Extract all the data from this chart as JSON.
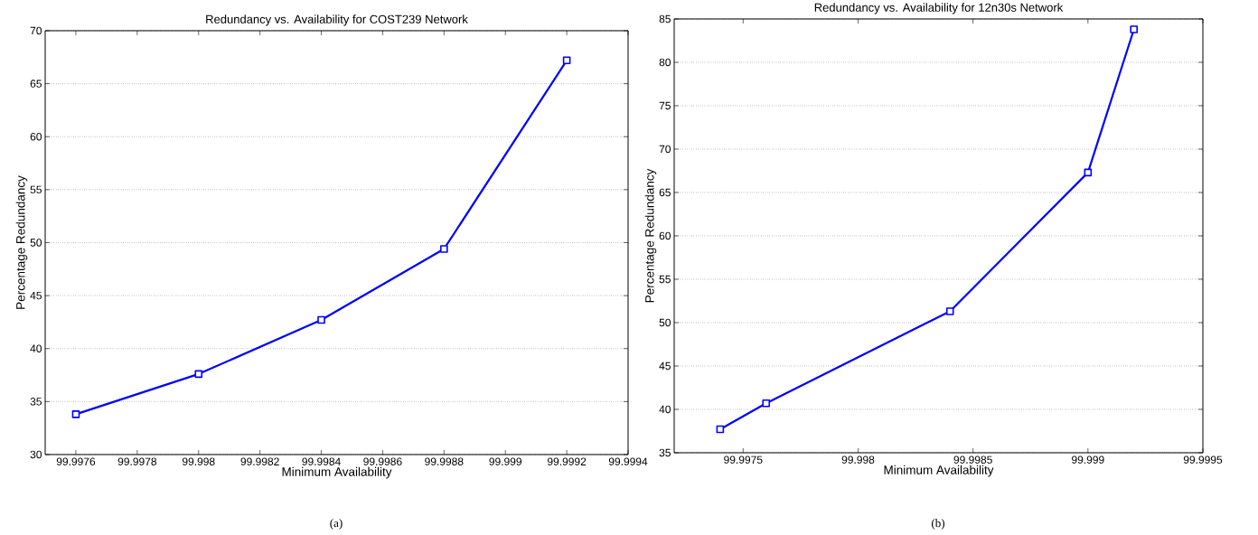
{
  "chart_data": [
    {
      "type": "line",
      "title": "Redundancy vs. Availability for COST239 Network",
      "xlabel": "Minimum Availability",
      "ylabel": "Percentage Redundancy",
      "annotations": [
        "(a)"
      ],
      "x": [
        99.9976,
        99.998,
        99.9984,
        99.9988,
        99.9992
      ],
      "series": [
        {
          "color": "#0000ff",
          "values": [
            33.8,
            37.6,
            42.7,
            49.4,
            67.2
          ]
        }
      ],
      "xlim": [
        99.9975,
        99.9994
      ],
      "ylim": [
        30,
        70
      ],
      "xticks": [
        99.9976,
        99.9978,
        99.998,
        99.9982,
        99.9984,
        99.9986,
        99.9988,
        99.999,
        99.9992,
        99.9994
      ],
      "yticks": [
        30,
        35,
        40,
        45,
        50,
        55,
        60,
        65,
        70
      ],
      "grid": "y",
      "marker": "square",
      "line_style": "solid"
    },
    {
      "type": "line",
      "title": "Redundancy vs. Availability for 12n30s Network",
      "xlabel": "Minimum Availability",
      "ylabel": "Percentage Redundancy",
      "annotations": [
        "(b)"
      ],
      "x": [
        99.9974,
        99.9976,
        99.9984,
        99.999,
        99.9992
      ],
      "series": [
        {
          "color": "#0000ff",
          "values": [
            37.7,
            40.7,
            51.3,
            67.3,
            83.8
          ]
        }
      ],
      "xlim": [
        99.9972,
        99.9995
      ],
      "ylim": [
        35,
        85
      ],
      "xticks": [
        99.9975,
        99.998,
        99.9985,
        99.999,
        99.9995
      ],
      "yticks": [
        35,
        40,
        45,
        50,
        55,
        60,
        65,
        70,
        75,
        80,
        85
      ],
      "grid": "y",
      "marker": "square",
      "line_style": "solid"
    }
  ]
}
